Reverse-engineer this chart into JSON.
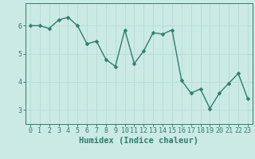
{
  "x": [
    0,
    1,
    2,
    3,
    4,
    5,
    6,
    7,
    8,
    9,
    10,
    11,
    12,
    13,
    14,
    15,
    16,
    17,
    18,
    19,
    20,
    21,
    22,
    23
  ],
  "y": [
    6.0,
    6.0,
    5.9,
    6.2,
    6.3,
    6.0,
    5.35,
    5.45,
    4.8,
    4.55,
    5.85,
    4.65,
    5.1,
    5.75,
    5.7,
    5.85,
    4.05,
    3.6,
    3.75,
    3.05,
    3.6,
    3.95,
    4.3,
    3.4
  ],
  "line_color": "#2e7d6e",
  "marker": "D",
  "markersize": 2.5,
  "linewidth": 1.0,
  "xlabel": "Humidex (Indice chaleur)",
  "xlabel_fontsize": 7.5,
  "xlim": [
    -0.5,
    23.5
  ],
  "ylim": [
    2.5,
    6.8
  ],
  "yticks": [
    3,
    4,
    5,
    6
  ],
  "xticks": [
    0,
    1,
    2,
    3,
    4,
    5,
    6,
    7,
    8,
    9,
    10,
    11,
    12,
    13,
    14,
    15,
    16,
    17,
    18,
    19,
    20,
    21,
    22,
    23
  ],
  "grid_color": "#b8ddd8",
  "background_color": "#cceae4",
  "tick_fontsize": 6.0
}
